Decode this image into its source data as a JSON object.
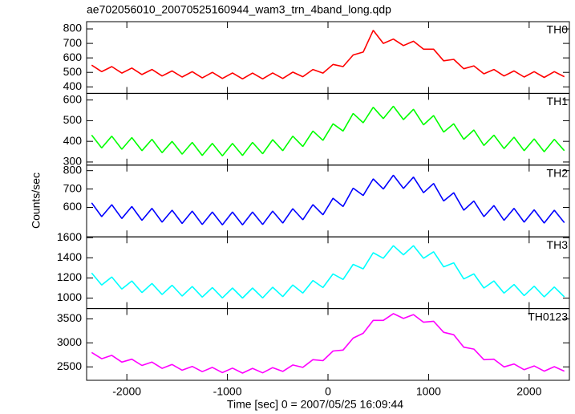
{
  "title": "ae702056010_20070525160944_wam3_trn_4band_long.qdp",
  "x_label": "Time [sec] 0 = 2007/05/25 16:09:44",
  "y_label": "Counts/sec",
  "xlim": [
    -2400,
    2400
  ],
  "xticks": [
    -2000,
    -1000,
    0,
    1000,
    2000
  ],
  "x": [
    -2350,
    -2250,
    -2150,
    -2050,
    -1950,
    -1850,
    -1750,
    -1650,
    -1550,
    -1450,
    -1350,
    -1250,
    -1150,
    -1050,
    -950,
    -850,
    -750,
    -650,
    -550,
    -450,
    -350,
    -250,
    -150,
    -50,
    50,
    150,
    250,
    350,
    450,
    550,
    650,
    750,
    850,
    950,
    1050,
    1150,
    1250,
    1350,
    1450,
    1550,
    1650,
    1750,
    1850,
    1950,
    2050,
    2150,
    2250,
    2350
  ],
  "chart_data": [
    {
      "type": "line",
      "label": "TH0",
      "color": "#ff0000",
      "ylim": [
        355,
        850
      ],
      "yticks": [
        400,
        500,
        600,
        700,
        800
      ],
      "values": [
        550,
        505,
        540,
        495,
        530,
        485,
        520,
        475,
        510,
        468,
        505,
        462,
        500,
        458,
        496,
        455,
        495,
        455,
        496,
        458,
        502,
        470,
        520,
        495,
        555,
        540,
        620,
        640,
        790,
        700,
        730,
        685,
        715,
        660,
        660,
        580,
        590,
        525,
        545,
        490,
        520,
        475,
        510,
        468,
        505,
        465,
        505,
        470
      ]
    },
    {
      "type": "line",
      "label": "TH1",
      "color": "#00ff00",
      "ylim": [
        285,
        632
      ],
      "yticks": [
        300,
        400,
        500,
        600
      ],
      "values": [
        430,
        368,
        425,
        362,
        418,
        355,
        410,
        345,
        400,
        338,
        395,
        332,
        390,
        330,
        390,
        332,
        395,
        340,
        408,
        355,
        425,
        375,
        450,
        405,
        485,
        450,
        535,
        490,
        565,
        510,
        570,
        505,
        555,
        480,
        525,
        445,
        485,
        410,
        455,
        380,
        430,
        365,
        420,
        355,
        412,
        350,
        410,
        355
      ]
    },
    {
      "type": "line",
      "label": "TH2",
      "color": "#0000ff",
      "ylim": [
        440,
        830
      ],
      "yticks": [
        600,
        700,
        800
      ],
      "values": [
        625,
        550,
        615,
        540,
        605,
        530,
        595,
        520,
        585,
        513,
        580,
        507,
        575,
        505,
        575,
        505,
        575,
        507,
        580,
        515,
        593,
        533,
        615,
        560,
        650,
        605,
        705,
        665,
        755,
        700,
        775,
        703,
        765,
        680,
        730,
        635,
        680,
        585,
        635,
        550,
        610,
        530,
        595,
        520,
        587,
        515,
        585,
        517
      ]
    },
    {
      "type": "line",
      "label": "TH3",
      "color": "#00ffff",
      "ylim": [
        896,
        1608
      ],
      "yticks": [
        1000,
        1200,
        1400,
        1600
      ],
      "values": [
        1250,
        1130,
        1210,
        1090,
        1170,
        1055,
        1145,
        1035,
        1128,
        1020,
        1115,
        1010,
        1105,
        1002,
        1100,
        1000,
        1100,
        1002,
        1108,
        1015,
        1130,
        1050,
        1175,
        1105,
        1240,
        1185,
        1335,
        1290,
        1450,
        1395,
        1520,
        1430,
        1520,
        1395,
        1460,
        1310,
        1350,
        1190,
        1240,
        1100,
        1170,
        1050,
        1135,
        1025,
        1118,
        1012,
        1110,
        1012
      ]
    },
    {
      "type": "line",
      "label": "TH0123",
      "color": "#ff00ff",
      "ylim": [
        2220,
        3715
      ],
      "yticks": [
        2500,
        3000,
        3500
      ],
      "values": [
        2800,
        2670,
        2740,
        2600,
        2660,
        2530,
        2600,
        2470,
        2550,
        2430,
        2510,
        2400,
        2490,
        2380,
        2475,
        2370,
        2470,
        2375,
        2485,
        2405,
        2540,
        2490,
        2650,
        2630,
        2830,
        2850,
        3100,
        3200,
        3470,
        3470,
        3610,
        3510,
        3590,
        3430,
        3450,
        3220,
        3170,
        2910,
        2870,
        2650,
        2660,
        2500,
        2560,
        2440,
        2520,
        2410,
        2505,
        2410
      ]
    }
  ]
}
